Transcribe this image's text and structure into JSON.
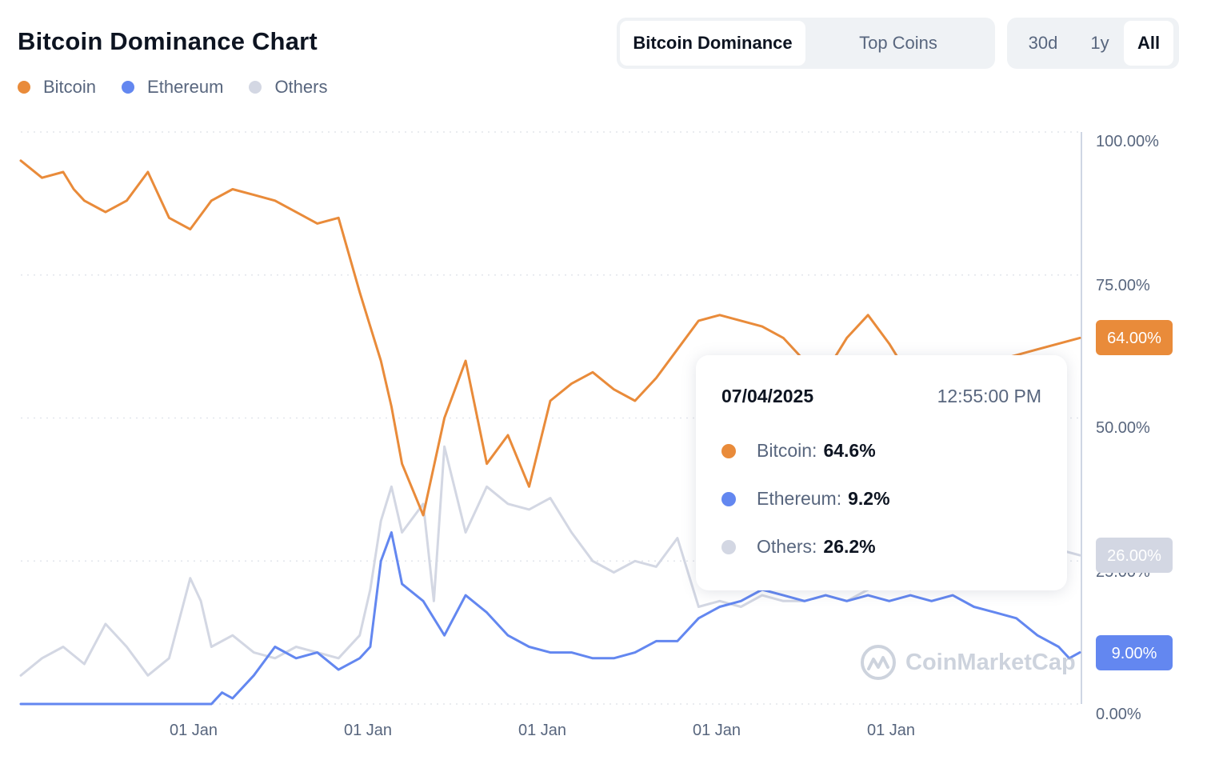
{
  "header": {
    "title": "Bitcoin Dominance Chart"
  },
  "legend": [
    {
      "name": "Bitcoin",
      "color": "#e98b3a"
    },
    {
      "name": "Ethereum",
      "color": "#6387f0"
    },
    {
      "name": "Others",
      "color": "#d3d7e3"
    }
  ],
  "view_toggle": {
    "options": [
      "Bitcoin Dominance",
      "Top Coins"
    ],
    "selected": "Bitcoin Dominance"
  },
  "range_toggle": {
    "options": [
      "30d",
      "1y",
      "All"
    ],
    "selected": "All"
  },
  "tooltip": {
    "date": "07/04/2025",
    "time": "12:55:00 PM",
    "rows": [
      {
        "label": "Bitcoin:",
        "value": "64.6%",
        "color": "#e98b3a"
      },
      {
        "label": "Ethereum:",
        "value": "9.2%",
        "color": "#6387f0"
      },
      {
        "label": "Others:",
        "value": "26.2%",
        "color": "#d3d7e3"
      }
    ]
  },
  "watermark": {
    "text": "CoinMarketCap",
    "icon": "coinmarketcap-logo-icon"
  },
  "chart_data": {
    "type": "line",
    "title": "Bitcoin Dominance Chart",
    "y_ticks": [
      "100.00%",
      "75.00%",
      "50.00%",
      "25.00%",
      "0.00%"
    ],
    "x_ticks": [
      "01 Jan",
      "01 Jan",
      "01 Jan",
      "01 Jan",
      "01 Jan"
    ],
    "ylim": [
      0,
      100
    ],
    "grid": true,
    "legend_position": "top-left",
    "current_values": {
      "Bitcoin": "64.00%",
      "Others": "26.00%",
      "Ethereum": "9.00%"
    },
    "series": [
      {
        "name": "Bitcoin",
        "color": "#e98b3a",
        "x": [
          0,
          2,
          4,
          5,
          6,
          8,
          10,
          12,
          14,
          16,
          18,
          20,
          22,
          24,
          26,
          28,
          30,
          32,
          33,
          34,
          35,
          36,
          38,
          40,
          42,
          44,
          46,
          48,
          50,
          52,
          54,
          56,
          58,
          60,
          62,
          64,
          66,
          68,
          70,
          72,
          74,
          76,
          78,
          80,
          82,
          84,
          86,
          88,
          90,
          92,
          94,
          96,
          98,
          100
        ],
        "values": [
          95,
          92,
          93,
          90,
          88,
          86,
          88,
          93,
          85,
          83,
          88,
          90,
          89,
          88,
          86,
          84,
          85,
          72,
          66,
          60,
          52,
          42,
          33,
          50,
          60,
          42,
          47,
          38,
          53,
          56,
          58,
          55,
          53,
          57,
          62,
          67,
          68,
          67,
          66,
          64,
          60,
          58,
          64,
          68,
          63,
          57,
          59,
          60,
          58,
          60,
          61,
          62,
          63,
          64
        ]
      },
      {
        "name": "Ethereum",
        "color": "#6387f0",
        "x": [
          0,
          4,
          8,
          12,
          16,
          18,
          19,
          20,
          22,
          24,
          26,
          28,
          30,
          32,
          33,
          34,
          35,
          36,
          38,
          40,
          42,
          44,
          46,
          48,
          50,
          52,
          54,
          56,
          58,
          60,
          62,
          64,
          66,
          68,
          70,
          72,
          74,
          76,
          78,
          80,
          82,
          84,
          86,
          88,
          90,
          92,
          94,
          96,
          98,
          99,
          100
        ],
        "values": [
          0,
          0,
          0,
          0,
          0,
          0,
          2,
          1,
          5,
          10,
          8,
          9,
          6,
          8,
          10,
          25,
          30,
          21,
          18,
          12,
          19,
          16,
          12,
          10,
          9,
          9,
          8,
          8,
          9,
          11,
          11,
          15,
          17,
          18,
          20,
          19,
          18,
          19,
          18,
          19,
          18,
          19,
          18,
          19,
          17,
          16,
          15,
          12,
          10,
          8,
          9
        ]
      },
      {
        "name": "Others",
        "color": "#d3d7e3",
        "x": [
          0,
          2,
          4,
          6,
          8,
          10,
          12,
          14,
          15,
          16,
          17,
          18,
          20,
          22,
          24,
          26,
          28,
          30,
          32,
          33,
          34,
          35,
          36,
          38,
          39,
          40,
          42,
          44,
          46,
          48,
          50,
          52,
          54,
          56,
          58,
          60,
          62,
          64,
          66,
          68,
          70,
          72,
          74,
          76,
          78,
          80,
          82,
          84,
          86,
          88,
          90,
          92,
          94,
          96,
          98,
          100
        ],
        "values": [
          5,
          8,
          10,
          7,
          14,
          10,
          5,
          8,
          15,
          22,
          18,
          10,
          12,
          9,
          8,
          10,
          9,
          8,
          12,
          20,
          32,
          38,
          30,
          35,
          18,
          45,
          30,
          38,
          35,
          34,
          36,
          30,
          25,
          23,
          25,
          24,
          29,
          17,
          18,
          17,
          19,
          18,
          18,
          19,
          18,
          20,
          22,
          20,
          23,
          22,
          23,
          25,
          24,
          26,
          27,
          26
        ]
      }
    ]
  }
}
